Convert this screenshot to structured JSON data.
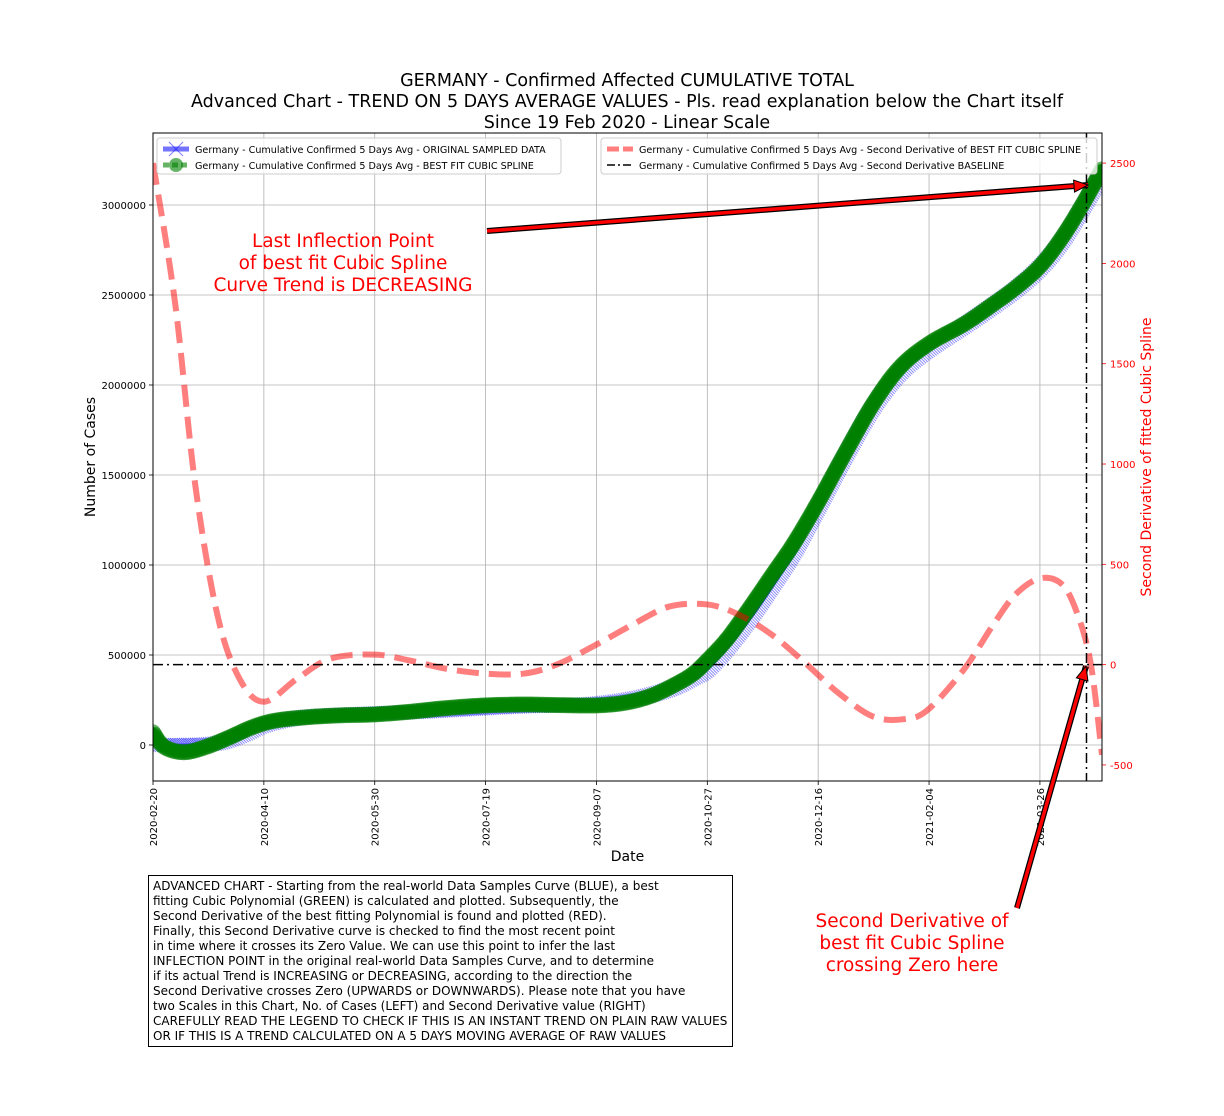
{
  "chart_data": {
    "type": "line",
    "title": [
      "GERMANY - Confirmed Affected CUMULATIVE TOTAL",
      "Advanced Chart - TREND ON 5 DAYS AVERAGE VALUES - Pls. read explanation below the Chart itself",
      "Since 19 Feb 2020 - Linear Scale"
    ],
    "xlabel": "Date",
    "ylabel": "Number of Cases",
    "y2label": "Second Derivative of fitted Cubic Spline",
    "x_range": [
      "2020-02-20",
      "2021-04-23"
    ],
    "ylim": [
      -200000,
      3400000
    ],
    "y2lim": [
      -580,
      2650
    ],
    "grid": true,
    "x_ticks": [
      "2020-02-20",
      "2020-04-10",
      "2020-05-30",
      "2020-07-19",
      "2020-09-07",
      "2020-10-27",
      "2020-12-16",
      "2021-02-04",
      "2021-03-26"
    ],
    "y_ticks": [
      "0",
      "500000",
      "1000000",
      "1500000",
      "2000000",
      "2500000",
      "3000000"
    ],
    "y2_ticks": [
      "-500",
      "0",
      "500",
      "1000",
      "1500",
      "2000",
      "2500"
    ],
    "legend_left": {
      "placement": "upper left",
      "entries": [
        "Germany - Cumulative Confirmed 5 Days Avg - ORIGINAL SAMPLED DATA",
        "Germany - Cumulative Confirmed 5 Days Avg - BEST FIT CUBIC SPLINE"
      ]
    },
    "legend_right": {
      "placement": "upper right",
      "entries": [
        "Germany - Cumulative Confirmed 5 Days Avg - Second Derivative of BEST FIT CUBIC SPLINE",
        "Germany - Cumulative Confirmed 5 Days Avg - Second Derivative BASELINE"
      ]
    },
    "series": [
      {
        "name": "Germany - Cumulative Confirmed 5 Days Avg - ORIGINAL SAMPLED DATA",
        "color": "#0000ff",
        "axis": "left",
        "x": [
          "2020-02-20",
          "2020-03-05",
          "2020-03-20",
          "2020-04-01",
          "2020-04-10",
          "2020-04-25",
          "2020-05-10",
          "2020-05-30",
          "2020-06-20",
          "2020-07-05",
          "2020-07-19",
          "2020-08-05",
          "2020-08-20",
          "2020-09-07",
          "2020-09-25",
          "2020-10-10",
          "2020-10-20",
          "2020-10-27",
          "2020-11-05",
          "2020-11-15",
          "2020-11-25",
          "2020-12-05",
          "2020-12-16",
          "2020-12-28",
          "2021-01-10",
          "2021-01-22",
          "2021-02-04",
          "2021-02-20",
          "2021-03-05",
          "2021-03-15",
          "2021-03-26",
          "2021-04-05",
          "2021-04-15",
          "2021-04-23"
        ],
        "values": [
          0,
          0,
          10000,
          60000,
          110000,
          150000,
          165000,
          175000,
          185000,
          195000,
          205000,
          215000,
          220000,
          230000,
          260000,
          310000,
          370000,
          420000,
          540000,
          700000,
          880000,
          1070000,
          1320000,
          1600000,
          1880000,
          2070000,
          2200000,
          2330000,
          2440000,
          2530000,
          2650000,
          2800000,
          3000000,
          3170000
        ]
      },
      {
        "name": "Germany - Cumulative Confirmed 5 Days Avg - BEST FIT CUBIC SPLINE",
        "color": "#008000",
        "axis": "left",
        "x": [
          "2020-02-20",
          "2020-02-25",
          "2020-03-05",
          "2020-03-15",
          "2020-03-25",
          "2020-04-05",
          "2020-04-15",
          "2020-04-30",
          "2020-05-15",
          "2020-05-30",
          "2020-06-15",
          "2020-07-01",
          "2020-07-19",
          "2020-08-05",
          "2020-08-20",
          "2020-09-07",
          "2020-09-20",
          "2020-10-01",
          "2020-10-10",
          "2020-10-20",
          "2020-10-27",
          "2020-11-05",
          "2020-11-15",
          "2020-11-25",
          "2020-12-05",
          "2020-12-16",
          "2020-12-28",
          "2021-01-10",
          "2021-01-22",
          "2021-02-04",
          "2021-02-20",
          "2021-03-05",
          "2021-03-15",
          "2021-03-26",
          "2021-04-05",
          "2021-04-15",
          "2021-04-23"
        ],
        "values": [
          70000,
          -10000,
          -40000,
          -10000,
          40000,
          100000,
          135000,
          155000,
          165000,
          170000,
          185000,
          205000,
          220000,
          225000,
          222000,
          220000,
          235000,
          270000,
          320000,
          390000,
          470000,
          590000,
          760000,
          940000,
          1120000,
          1350000,
          1620000,
          1900000,
          2100000,
          2230000,
          2340000,
          2450000,
          2540000,
          2660000,
          2820000,
          3020000,
          3200000
        ]
      },
      {
        "name": "Germany - Cumulative Confirmed 5 Days Avg - Second Derivative of BEST FIT CUBIC SPLINE",
        "color": "#ff0000",
        "axis": "right",
        "x": [
          "2020-02-20",
          "2020-03-01",
          "2020-03-10",
          "2020-03-20",
          "2020-03-30",
          "2020-04-10",
          "2020-04-25",
          "2020-05-10",
          "2020-05-30",
          "2020-06-15",
          "2020-07-01",
          "2020-07-19",
          "2020-08-05",
          "2020-08-20",
          "2020-09-07",
          "2020-09-25",
          "2020-10-10",
          "2020-10-27",
          "2020-11-10",
          "2020-11-25",
          "2020-12-10",
          "2020-12-25",
          "2021-01-10",
          "2021-01-25",
          "2021-02-04",
          "2021-02-20",
          "2021-03-05",
          "2021-03-15",
          "2021-03-26",
          "2021-04-05",
          "2021-04-12",
          "2021-04-18",
          "2021-04-23"
        ],
        "values": [
          2500,
          1800,
          900,
          250,
          -70,
          -185,
          -70,
          30,
          50,
          20,
          -20,
          -45,
          -45,
          0,
          100,
          210,
          290,
          300,
          250,
          150,
          10,
          -140,
          -260,
          -270,
          -220,
          -20,
          200,
          350,
          430,
          400,
          250,
          0,
          -450
        ]
      },
      {
        "name": "Germany - Cumulative Confirmed 5 Days Avg - Second Derivative BASELINE",
        "color": "#000000",
        "axis": "right",
        "x": [
          "2020-02-20",
          "2021-04-23"
        ],
        "values": [
          0,
          0
        ]
      }
    ],
    "vertical_marker": {
      "date": "2021-04-16",
      "style": "dash-dot",
      "color": "#000000"
    },
    "annotations": [
      {
        "lines": [
          "Last Inflection Point",
          "of best fit Cubic Spline",
          "Curve Trend is DECREASING"
        ],
        "color": "#ff0000",
        "arrow_to": "latest BEST FIT CUBIC SPLINE point"
      },
      {
        "lines": [
          "Second Derivative of",
          "best fit Cubic Spline",
          "crossing Zero here"
        ],
        "color": "#ff0000",
        "arrow_to": "Second Derivative zero crossing"
      }
    ]
  },
  "explanation": [
    "ADVANCED CHART - Starting from the real-world Data Samples Curve (BLUE), a best",
    "fitting Cubic Polynomial (GREEN) is calculated and plotted. Subsequently, the",
    "Second Derivative of the best fitting Polynomial is found and plotted (RED).",
    "Finally, this Second Derivative curve is checked to find the most recent point",
    "in time where it crosses its Zero Value. We can use this point to infer the last",
    "INFLECTION POINT in the original real-world Data Samples Curve, and to determine",
    "if its actual Trend is INCREASING or DECREASING, according to the direction the",
    "Second Derivative crosses Zero (UPWARDS or DOWNWARDS). Please note that you have",
    "two Scales in this Chart, No. of Cases (LEFT) and Second Derivative value (RIGHT)",
    "CAREFULLY READ THE LEGEND TO CHECK IF THIS IS AN INSTANT TREND ON PLAIN RAW VALUES",
    "OR IF THIS IS A TREND CALCULATED ON A 5 DAYS MOVING AVERAGE OF RAW VALUES"
  ]
}
